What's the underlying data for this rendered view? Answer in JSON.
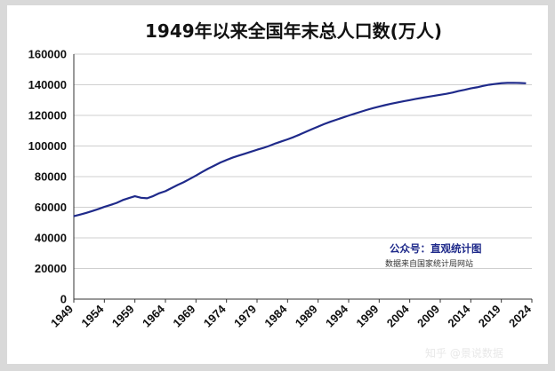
{
  "chart_data": {
    "type": "line",
    "title": "1949年以来全国年末总人口数(万人)",
    "xlabel": "",
    "ylabel": "",
    "xlim": [
      1949,
      2024
    ],
    "ylim": [
      0,
      160000
    ],
    "grid": true,
    "x_ticks": [
      "1949",
      "1954",
      "1959",
      "1964",
      "1969",
      "1974",
      "1979",
      "1984",
      "1989",
      "1994",
      "1999",
      "2004",
      "2009",
      "2014",
      "2019",
      "2024"
    ],
    "y_ticks": [
      "0",
      "20000",
      "40000",
      "60000",
      "80000",
      "100000",
      "120000",
      "140000",
      "160000"
    ],
    "series": [
      {
        "color": "#1f2a8a",
        "x": [
          1949,
          1950,
          1951,
          1952,
          1953,
          1954,
          1955,
          1956,
          1957,
          1958,
          1959,
          1960,
          1961,
          1962,
          1963,
          1964,
          1965,
          1966,
          1967,
          1968,
          1969,
          1970,
          1971,
          1972,
          1973,
          1974,
          1975,
          1976,
          1977,
          1978,
          1979,
          1980,
          1981,
          1982,
          1983,
          1984,
          1985,
          1986,
          1987,
          1988,
          1989,
          1990,
          1991,
          1992,
          1993,
          1994,
          1995,
          1996,
          1997,
          1998,
          1999,
          2000,
          2001,
          2002,
          2003,
          2004,
          2005,
          2006,
          2007,
          2008,
          2009,
          2010,
          2011,
          2012,
          2013,
          2014,
          2015,
          2016,
          2017,
          2018,
          2019,
          2020,
          2021,
          2022,
          2023
        ],
        "values": [
          54167,
          55196,
          56300,
          57482,
          58796,
          60266,
          61465,
          62828,
          64653,
          65994,
          67207,
          66207,
          65859,
          67296,
          69172,
          70499,
          72538,
          74542,
          76368,
          78534,
          80671,
          82992,
          85229,
          87177,
          89211,
          90859,
          92420,
          93717,
          94974,
          96259,
          97542,
          98705,
          100072,
          101654,
          103008,
          104357,
          105851,
          107507,
          109300,
          111026,
          112704,
          114333,
          115823,
          117171,
          118517,
          119850,
          121121,
          122389,
          123626,
          124761,
          125786,
          126743,
          127627,
          128453,
          129227,
          129988,
          130756,
          131448,
          132129,
          132802,
          133450,
          134091,
          134916,
          135922,
          136726,
          137646,
          138326,
          139232,
          140011,
          140541,
          141008,
          141212,
          141260,
          141175,
          140967
        ]
      }
    ]
  },
  "annotation": {
    "source_line1": "公众号：直观统计图",
    "source_line2": "数据来自国家统计局网站"
  },
  "watermark": {
    "text": "知乎 @景说数据"
  },
  "colors": {
    "line": "#1f2a8a",
    "grid": "#cfcfcf",
    "axis": "#333333"
  }
}
